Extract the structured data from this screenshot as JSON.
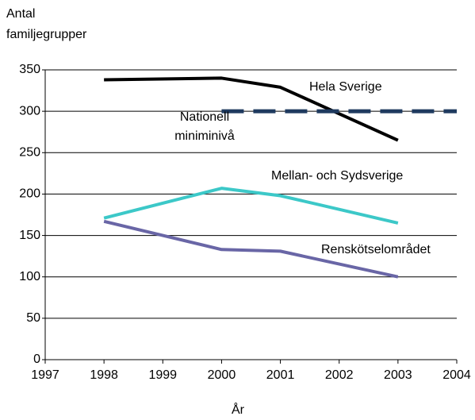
{
  "chart_data": {
    "type": "line",
    "ylabel": "Antal familjegrupper",
    "xlabel": "År",
    "xlim": [
      1997,
      2004
    ],
    "xticks": [
      1997,
      1998,
      1999,
      2000,
      2001,
      2002,
      2003,
      2004
    ],
    "ylim": [
      0,
      350
    ],
    "yticks": [
      0,
      50,
      100,
      150,
      200,
      250,
      300,
      350
    ],
    "grid": true,
    "series": [
      {
        "name": "Hela Sverige",
        "color": "#000000",
        "x": [
          1998,
          2000,
          2001,
          2003
        ],
        "values": [
          338,
          340,
          329,
          265
        ]
      },
      {
        "name": "Nationell miniminivå",
        "color": "#1f3a5f",
        "dashed": true,
        "x": [
          2000,
          2004
        ],
        "values": [
          300,
          300
        ]
      },
      {
        "name": "Mellan- och Sydsverige",
        "color": "#3cc8c8",
        "x": [
          1998,
          2000,
          2001,
          2003
        ],
        "values": [
          171,
          207,
          198,
          165
        ]
      },
      {
        "name": "Renskötselområdet",
        "color": "#6966a6",
        "x": [
          1998,
          2000,
          2001,
          2003
        ],
        "values": [
          167,
          133,
          131,
          100
        ]
      }
    ]
  }
}
